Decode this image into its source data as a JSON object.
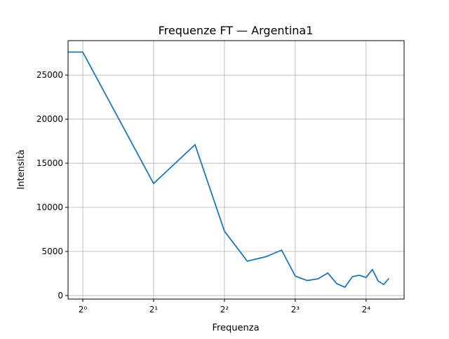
{
  "chart_data": {
    "type": "line",
    "title": "Frequenze FT — Argentina1",
    "x_label": "Frequenza",
    "y_label": "Intensità",
    "x": [
      0,
      1,
      2,
      3,
      4,
      5,
      6,
      7,
      8,
      9,
      10,
      11,
      12,
      13,
      14,
      15,
      16,
      17,
      18,
      19,
      20
    ],
    "series": [
      {
        "color": "#1f77b4",
        "values": [
          27600,
          27600,
          12700,
          17100,
          7300,
          3900,
          4400,
          5150,
          2200,
          1700,
          1900,
          2550,
          1350,
          950,
          2150,
          2300,
          2050,
          2950,
          1650,
          1250,
          1950
        ]
      }
    ],
    "x_scale": "log2",
    "xlim": [
      0.866,
      23.2
    ],
    "ylim": [
      -400,
      28900
    ],
    "xticks": [
      {
        "value": 1,
        "label": "2⁰"
      },
      {
        "value": 2,
        "label": "2¹"
      },
      {
        "value": 4,
        "label": "2²"
      },
      {
        "value": 8,
        "label": "2³"
      },
      {
        "value": 16,
        "label": "2⁴"
      }
    ],
    "yticks": [
      0,
      5000,
      10000,
      15000,
      20000,
      25000
    ],
    "grid": true
  }
}
